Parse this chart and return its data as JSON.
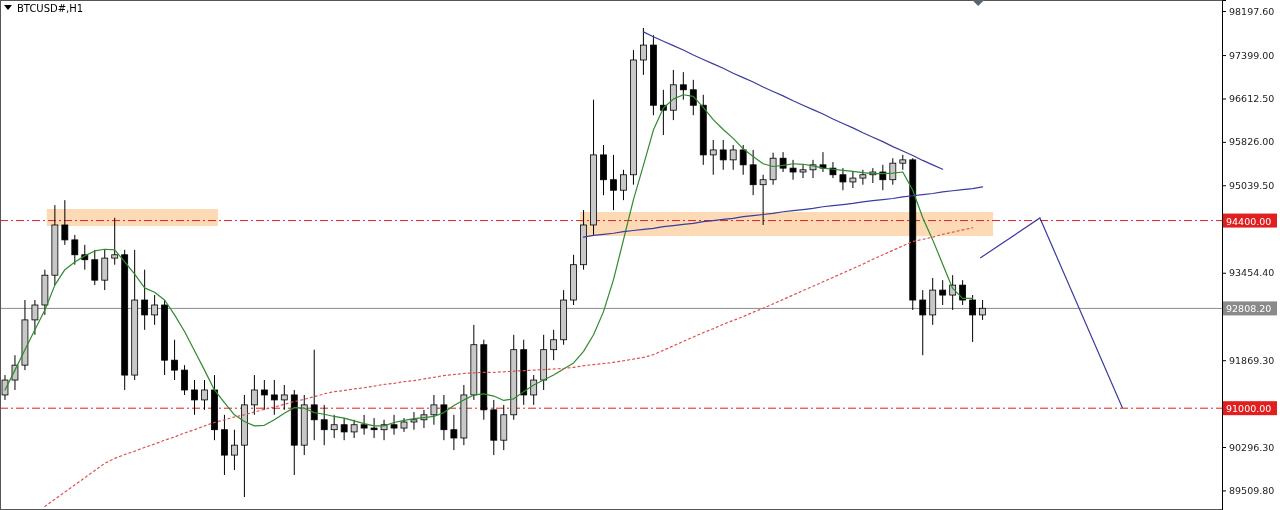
{
  "chart_data": {
    "type": "candlestick",
    "title": "BTCUSD#,H1",
    "categories": [
      null,
      null,
      null,
      null,
      null,
      null,
      null,
      null,
      null,
      null,
      null,
      null,
      null,
      null,
      null,
      null,
      null,
      null,
      null,
      null,
      null,
      null,
      null,
      null,
      null,
      null,
      null,
      null,
      null,
      null,
      null,
      null,
      null,
      null,
      null,
      null,
      null,
      null,
      null,
      null,
      null,
      null,
      null,
      null,
      null,
      null,
      null,
      null,
      null,
      null,
      null,
      null,
      null,
      null,
      null,
      null,
      null,
      null,
      null,
      null,
      null,
      null,
      null,
      null,
      null,
      null,
      null,
      null,
      null,
      null,
      null,
      null,
      null,
      null,
      null,
      null,
      null,
      null,
      null,
      null,
      null,
      null,
      null,
      null,
      null,
      null,
      null,
      null,
      null,
      null,
      null,
      null,
      null,
      null,
      null,
      null,
      null,
      null,
      null
    ],
    "ohlc": [
      [
        91240,
        91600,
        91150,
        91510
      ],
      [
        91510,
        91960,
        91330,
        91780
      ],
      [
        91780,
        92960,
        91690,
        92600
      ],
      [
        92600,
        92960,
        92330,
        92870
      ],
      [
        92870,
        93510,
        92690,
        93410
      ],
      [
        93410,
        94680,
        93230,
        94320
      ],
      [
        94320,
        94770,
        93960,
        94050
      ],
      [
        94050,
        94140,
        93600,
        93780
      ],
      [
        93780,
        93960,
        93510,
        93690
      ],
      [
        93690,
        93870,
        93230,
        93320
      ],
      [
        93320,
        93870,
        93140,
        93720
      ],
      [
        93720,
        94450,
        93600,
        93780
      ],
      [
        93780,
        93870,
        91330,
        91600
      ],
      [
        91600,
        93870,
        91510,
        92960
      ],
      [
        92960,
        93510,
        92420,
        92690
      ],
      [
        92690,
        93050,
        92510,
        92870
      ],
      [
        92870,
        92960,
        91600,
        91870
      ],
      [
        91870,
        92240,
        91510,
        91690
      ],
      [
        91690,
        91780,
        91240,
        91330
      ],
      [
        91330,
        91510,
        90880,
        91150
      ],
      [
        91150,
        91510,
        90970,
        91330
      ],
      [
        91330,
        91600,
        90420,
        90610
      ],
      [
        90610,
        90880,
        89790,
        90150
      ],
      [
        90150,
        90610,
        89880,
        90330
      ],
      [
        90330,
        91240,
        89390,
        91060
      ],
      [
        91060,
        91600,
        90880,
        91330
      ],
      [
        91330,
        91510,
        90970,
        91240
      ],
      [
        91240,
        91510,
        90880,
        91150
      ],
      [
        91150,
        91420,
        90970,
        91240
      ],
      [
        91240,
        91330,
        89790,
        90330
      ],
      [
        90330,
        91240,
        90150,
        91060
      ],
      [
        91060,
        92060,
        90420,
        90790
      ],
      [
        90790,
        91060,
        90330,
        90610
      ],
      [
        90610,
        90880,
        90460,
        90700
      ],
      [
        90700,
        90820,
        90420,
        90570
      ],
      [
        90570,
        90790,
        90460,
        90700
      ],
      [
        90700,
        90880,
        90520,
        90640
      ],
      [
        90640,
        90820,
        90460,
        90610
      ],
      [
        90610,
        90790,
        90420,
        90700
      ],
      [
        90700,
        90880,
        90520,
        90640
      ],
      [
        90640,
        90820,
        90570,
        90750
      ],
      [
        90750,
        90930,
        90610,
        90790
      ],
      [
        90790,
        90970,
        90640,
        90880
      ],
      [
        90880,
        91240,
        90700,
        91060
      ],
      [
        91060,
        91240,
        90420,
        90610
      ],
      [
        90610,
        90880,
        90240,
        90460
      ],
      [
        90460,
        91420,
        90330,
        91240
      ],
      [
        91240,
        92510,
        91150,
        92150
      ],
      [
        92150,
        92240,
        90790,
        90970
      ],
      [
        90970,
        91150,
        90150,
        90420
      ],
      [
        90420,
        91060,
        90240,
        90880
      ],
      [
        90880,
        92330,
        90790,
        92060
      ],
      [
        92060,
        92240,
        91060,
        91240
      ],
      [
        91240,
        91600,
        91060,
        91510
      ],
      [
        91510,
        92330,
        91330,
        92060
      ],
      [
        92060,
        92420,
        91870,
        92240
      ],
      [
        92240,
        93140,
        92150,
        92960
      ],
      [
        92960,
        93780,
        92870,
        93600
      ],
      [
        93600,
        94590,
        93510,
        94320
      ],
      [
        94320,
        96590,
        94140,
        95590
      ],
      [
        95590,
        95770,
        94860,
        95140
      ],
      [
        95140,
        95590,
        94590,
        94950
      ],
      [
        94950,
        95320,
        94770,
        95230
      ],
      [
        95230,
        97490,
        95050,
        97310
      ],
      [
        97310,
        97890,
        97040,
        97580
      ],
      [
        97580,
        97760,
        96310,
        96490
      ],
      [
        96490,
        96770,
        95950,
        96400
      ],
      [
        96400,
        97130,
        96220,
        96860
      ],
      [
        96860,
        97090,
        96590,
        96770
      ],
      [
        96770,
        96950,
        96310,
        96490
      ],
      [
        96490,
        96680,
        95410,
        95590
      ],
      [
        95590,
        95860,
        95230,
        95680
      ],
      [
        95680,
        95860,
        95320,
        95500
      ],
      [
        95500,
        95770,
        95320,
        95680
      ],
      [
        95680,
        95770,
        95230,
        95410
      ],
      [
        95410,
        95680,
        94860,
        95050
      ],
      [
        95050,
        95230,
        94320,
        95140
      ],
      [
        95140,
        95630,
        95050,
        95530
      ],
      [
        95530,
        95640,
        95280,
        95350
      ],
      [
        95350,
        95500,
        95140,
        95280
      ],
      [
        95280,
        95410,
        95170,
        95320
      ],
      [
        95320,
        95500,
        95170,
        95410
      ],
      [
        95410,
        95640,
        95280,
        95350
      ],
      [
        95350,
        95460,
        95170,
        95230
      ],
      [
        95230,
        95350,
        94950,
        95100
      ],
      [
        95100,
        95280,
        94990,
        95170
      ],
      [
        95170,
        95320,
        95050,
        95230
      ],
      [
        95230,
        95350,
        95080,
        95280
      ],
      [
        95280,
        95410,
        94950,
        95140
      ],
      [
        95140,
        95530,
        95050,
        95440
      ],
      [
        95440,
        95590,
        95320,
        95500
      ],
      [
        95500,
        95530,
        92780,
        92960
      ],
      [
        92960,
        93140,
        91960,
        92690
      ],
      [
        92690,
        93360,
        92510,
        93140
      ],
      [
        93140,
        93320,
        92870,
        93050
      ],
      [
        93050,
        93410,
        92780,
        93230
      ],
      [
        93230,
        93320,
        92870,
        92960
      ],
      [
        92960,
        93050,
        92200,
        92690
      ],
      [
        92690,
        92960,
        92600,
        92810
      ]
    ],
    "series": [
      {
        "type": "line",
        "color": "#2e8b2e",
        "line_style": "solid",
        "values": [
          91330,
          91690,
          92060,
          92420,
          92780,
          93230,
          93510,
          93650,
          93760,
          93850,
          93880,
          93870,
          93650,
          93430,
          93180,
          93100,
          92960,
          92690,
          92390,
          92040,
          91690,
          91330,
          91100,
          90880,
          90760,
          90680,
          90690,
          90790,
          90910,
          91010,
          91000,
          90920,
          90890,
          90850,
          90820,
          90770,
          90720,
          90680,
          90680,
          90740,
          90780,
          90810,
          90830,
          90850,
          90920,
          91050,
          91150,
          91240,
          91260,
          91220,
          91140,
          91170,
          91300,
          91420,
          91510,
          91600,
          91710,
          91820,
          92030,
          92330,
          92750,
          93330,
          94050,
          94780,
          95400,
          96040,
          96440,
          96600,
          96680,
          96650,
          96450,
          96230,
          96050,
          95890,
          95700,
          95560,
          95430,
          95380,
          95400,
          95430,
          95420,
          95390,
          95350,
          95330,
          95310,
          95290,
          95270,
          95250,
          95250,
          95260,
          95280,
          94950,
          94450,
          94050,
          93610,
          93170,
          92990,
          92990,
          null
        ]
      },
      {
        "type": "line",
        "color": "#e05050",
        "line_style": "dotted",
        "values": [
          null,
          null,
          null,
          null,
          89220,
          89350,
          89480,
          89610,
          89740,
          89870,
          90000,
          90090,
          90160,
          90220,
          90290,
          90350,
          90420,
          90480,
          90550,
          90610,
          90680,
          90740,
          90790,
          90840,
          90880,
          90930,
          90980,
          91020,
          91070,
          91120,
          91160,
          91210,
          91260,
          91300,
          91320,
          91350,
          91370,
          91400,
          91430,
          91450,
          91480,
          91500,
          91530,
          91560,
          91590,
          91610,
          91630,
          91640,
          91650,
          91650,
          91660,
          91670,
          91680,
          91690,
          91700,
          91710,
          91720,
          91740,
          91770,
          91790,
          91810,
          91830,
          91860,
          91890,
          91920,
          91970,
          92050,
          92130,
          92210,
          92290,
          92370,
          92440,
          92520,
          92590,
          92660,
          92740,
          92810,
          92890,
          92970,
          93050,
          93130,
          93210,
          93290,
          93370,
          93450,
          93530,
          93610,
          93700,
          93780,
          93860,
          93940,
          94020,
          94060,
          94100,
          94150,
          94190,
          94230,
          94270,
          null
        ]
      },
      {
        "type": "line",
        "color": "#3b3ba0",
        "line_style": "solid",
        "values": [
          null,
          null,
          null,
          null,
          null,
          null,
          null,
          null,
          null,
          null,
          null,
          null,
          null,
          null,
          null,
          null,
          null,
          null,
          null,
          null,
          null,
          null,
          null,
          null,
          null,
          null,
          null,
          null,
          null,
          null,
          null,
          null,
          null,
          null,
          null,
          null,
          null,
          null,
          null,
          null,
          null,
          null,
          null,
          null,
          null,
          null,
          null,
          null,
          null,
          null,
          null,
          null,
          null,
          null,
          null,
          null,
          null,
          null,
          null,
          null,
          null,
          null,
          null,
          null,
          97820,
          97730,
          97650,
          97570,
          97490,
          97400,
          97320,
          97240,
          97160,
          97070,
          96990,
          96910,
          96820,
          96740,
          96660,
          96570,
          96490,
          96410,
          96330,
          96240,
          96160,
          96080,
          95990,
          95910,
          95830,
          95740,
          95660,
          95580,
          95490,
          95410,
          95330,
          null,
          null,
          null,
          null
        ]
      },
      {
        "type": "line",
        "color": "#3b3ba0",
        "line_style": "solid",
        "values": [
          null,
          null,
          null,
          null,
          null,
          null,
          null,
          null,
          null,
          null,
          null,
          null,
          null,
          null,
          null,
          null,
          null,
          null,
          null,
          null,
          null,
          null,
          null,
          null,
          null,
          null,
          null,
          null,
          null,
          null,
          null,
          null,
          null,
          null,
          null,
          null,
          null,
          null,
          null,
          null,
          null,
          null,
          null,
          null,
          null,
          null,
          null,
          null,
          null,
          null,
          null,
          null,
          null,
          null,
          null,
          null,
          null,
          null,
          94100,
          94130,
          94150,
          94170,
          94200,
          94220,
          94240,
          94260,
          94290,
          94310,
          94330,
          94350,
          94380,
          94400,
          94420,
          94440,
          94470,
          94490,
          94510,
          94530,
          94560,
          94580,
          94600,
          94620,
          94650,
          94670,
          94690,
          94710,
          94740,
          94760,
          94780,
          94800,
          94830,
          94850,
          94870,
          94890,
          94920,
          94940,
          94960,
          94980,
          95010
        ]
      }
    ],
    "ylim": [
      89155,
      98397
    ],
    "yticks": [
      {
        "value": 89509.8,
        "label": "89509.80"
      },
      {
        "value": 90296.3,
        "label": "90296.30"
      },
      {
        "value": 91869.3,
        "label": "91869.30"
      },
      {
        "value": 93454.4,
        "label": "93454.40"
      },
      {
        "value": 95039.5,
        "label": "95039.50"
      },
      {
        "value": 95826,
        "label": "95826.00"
      },
      {
        "value": 96612.5,
        "label": "96612.50"
      },
      {
        "value": 97399,
        "label": "97399.00"
      },
      {
        "value": 98197.6,
        "label": "98197.60"
      }
    ],
    "ref_lines": [
      {
        "axis": "y",
        "value": 94400,
        "label": "94400.00",
        "color": "#e02020",
        "line_style": "dashed"
      },
      {
        "axis": "y",
        "value": 91000,
        "label": "91000.00",
        "color": "#e02020",
        "line_style": "dashed"
      },
      {
        "axis": "y",
        "value": 92808.2,
        "label": "92808.20",
        "color": "#8a8a8a",
        "line_style": "solid"
      }
    ],
    "tick_labels": "y",
    "grid": false,
    "marker": "none"
  }
}
